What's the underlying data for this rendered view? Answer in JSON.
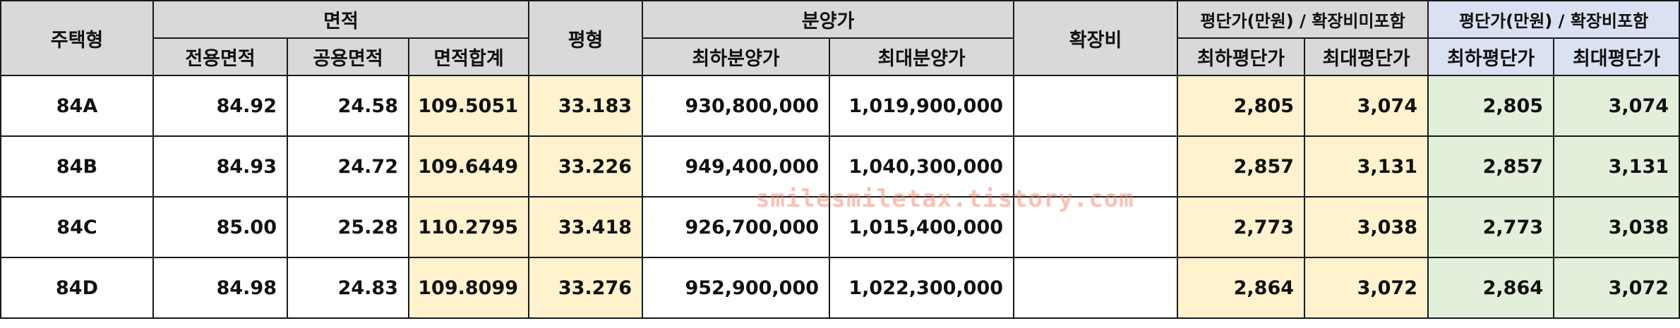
{
  "headers": {
    "type": "주택형",
    "area_group": "면적",
    "area_exclusive": "전용면적",
    "area_common": "공용면적",
    "area_total": "면적합계",
    "pyeong": "평형",
    "price_group": "분양가",
    "price_min": "최하분양가",
    "price_max": "최대분양가",
    "expansion": "확장비",
    "per_pyeong_excl_group": "평단가(만원) / 확장비미포함",
    "per_pyeong_excl_min": "최하평단가",
    "per_pyeong_excl_max": "최대평단가",
    "per_pyeong_incl_group": "평단가(만원) / 확장비포함",
    "per_pyeong_incl_min": "최하평단가",
    "per_pyeong_incl_max": "최대평단가"
  },
  "rows": [
    {
      "type": "84A",
      "area_exclusive": "84.92",
      "area_common": "24.58",
      "area_total": "109.5051",
      "pyeong": "33.183",
      "price_min": "930,800,000",
      "price_max": "1,019,900,000",
      "expansion": "",
      "excl_min": "2,805",
      "excl_max": "3,074",
      "incl_min": "2,805",
      "incl_max": "3,074"
    },
    {
      "type": "84B",
      "area_exclusive": "84.93",
      "area_common": "24.72",
      "area_total": "109.6449",
      "pyeong": "33.226",
      "price_min": "949,400,000",
      "price_max": "1,040,300,000",
      "expansion": "",
      "excl_min": "2,857",
      "excl_max": "3,131",
      "incl_min": "2,857",
      "incl_max": "3,131"
    },
    {
      "type": "84C",
      "area_exclusive": "85.00",
      "area_common": "25.28",
      "area_total": "110.2795",
      "pyeong": "33.418",
      "price_min": "926,700,000",
      "price_max": "1,015,400,000",
      "expansion": "",
      "excl_min": "2,773",
      "excl_max": "3,038",
      "incl_min": "2,773",
      "incl_max": "3,038"
    },
    {
      "type": "84D",
      "area_exclusive": "84.98",
      "area_common": "24.83",
      "area_total": "109.8099",
      "pyeong": "33.276",
      "price_min": "952,900,000",
      "price_max": "1,022,300,000",
      "expansion": "",
      "excl_min": "2,864",
      "excl_max": "3,072",
      "incl_min": "2,864",
      "incl_max": "3,072"
    }
  ],
  "watermark": "smilesmiletax.tistory.com",
  "colors": {
    "header_gray": "#d9d9d9",
    "header_blue": "#d9e1f2",
    "highlight_yellow": "#fff2cc",
    "highlight_green": "#e2efda"
  }
}
